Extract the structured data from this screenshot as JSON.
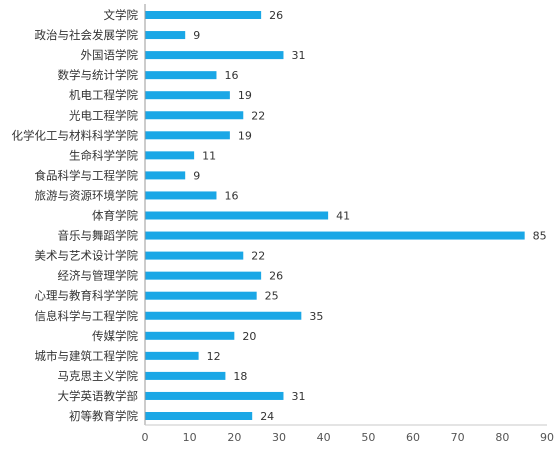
{
  "chart_data": {
    "type": "bar",
    "orientation": "horizontal",
    "title": "",
    "xlabel": "",
    "ylabel": "",
    "xlim": [
      0,
      90
    ],
    "x_ticks": [
      0,
      10,
      20,
      30,
      40,
      50,
      60,
      70,
      80,
      90
    ],
    "grid": false,
    "bar_color": "#1aa7e6",
    "categories": [
      "文学院",
      "政治与社会发展学院",
      "外国语学院",
      "数学与统计学院",
      "机电工程学院",
      "光电工程学院",
      "化学化工与材料科学学院",
      "生命科学学院",
      "食品科学与工程学院",
      "旅游与资源环境学院",
      "体育学院",
      "音乐与舞蹈学院",
      "美术与艺术设计学院",
      "经济与管理学院",
      "心理与教育科学学院",
      "信息科学与工程学院",
      "传媒学院",
      "城市与建筑工程学院",
      "马克思主义学院",
      "大学英语教学部",
      "初等教育学院"
    ],
    "values": [
      26,
      9,
      31,
      16,
      19,
      22,
      19,
      11,
      9,
      16,
      41,
      85,
      22,
      26,
      25,
      35,
      20,
      12,
      18,
      31,
      24
    ]
  }
}
